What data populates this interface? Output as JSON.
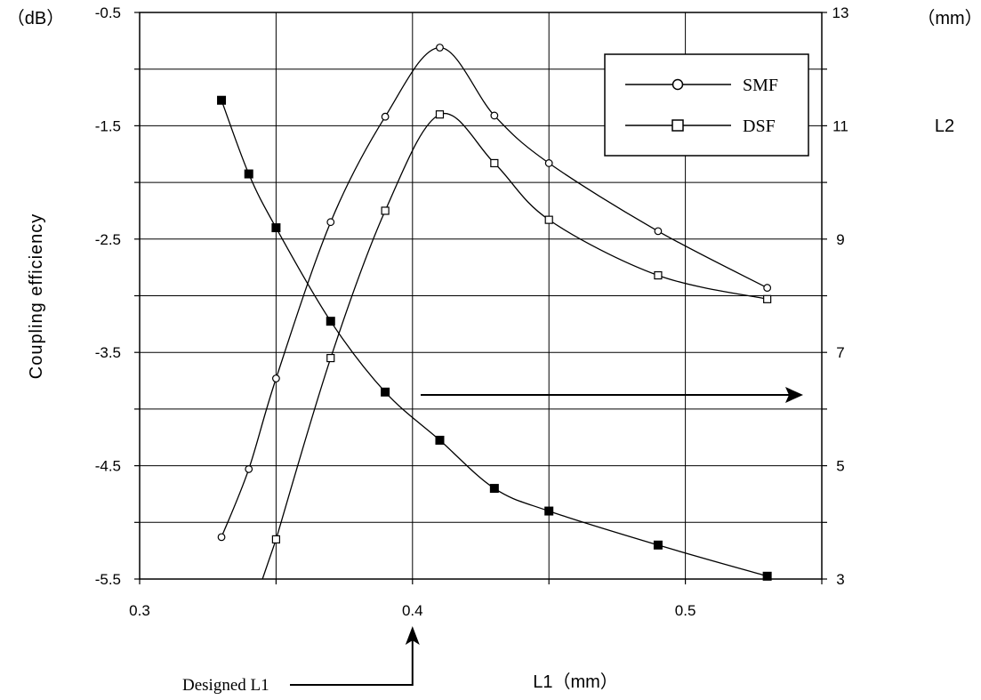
{
  "chart_data": {
    "type": "line",
    "xlabel": "L1（mm）",
    "ylabel": "Coupling efficiency",
    "y2label": "L2",
    "y_unit": "（dB）",
    "y2_unit": "（mm）",
    "xlim": [
      0.3,
      0.55
    ],
    "ylim": [
      -5.5,
      -0.5
    ],
    "y2lim": [
      3,
      13
    ],
    "grid": true,
    "legend_position": "top-right",
    "x_ticks": [
      "0.3",
      "0.4",
      "0.5"
    ],
    "y_ticks": [
      "-0.5",
      "-1.5",
      "-2.5",
      "-3.5",
      "-4.5",
      "-5.5"
    ],
    "y2_ticks": [
      "13",
      "11",
      "9",
      "7",
      "5",
      "3"
    ],
    "series": [
      {
        "name": "SMF",
        "marker": "open-circle",
        "axis": "left",
        "x": [
          0.33,
          0.34,
          0.35,
          0.37,
          0.39,
          0.41,
          0.43,
          0.45,
          0.49,
          0.53
        ],
        "y": [
          -5.13,
          -4.53,
          -3.73,
          -2.35,
          -1.42,
          -0.81,
          -1.41,
          -1.83,
          -2.43,
          -2.93
        ]
      },
      {
        "name": "DSF",
        "marker": "open-square",
        "axis": "left",
        "x": [
          0.35,
          0.37,
          0.39,
          0.41,
          0.43,
          0.45,
          0.49,
          0.53
        ],
        "y": [
          -5.15,
          -3.55,
          -2.25,
          -1.4,
          -1.83,
          -2.33,
          -2.82,
          -3.03
        ]
      },
      {
        "name": "L2",
        "marker": "filled-square",
        "axis": "right",
        "x": [
          0.33,
          0.34,
          0.35,
          0.37,
          0.39,
          0.41,
          0.43,
          0.45,
          0.49,
          0.53
        ],
        "y": [
          11.45,
          10.15,
          9.2,
          7.55,
          6.3,
          5.45,
          4.6,
          4.2,
          3.6,
          3.05
        ]
      }
    ],
    "annotations": {
      "designed_l1_label": "Designed L1",
      "designed_l1_value": 0.4
    }
  }
}
